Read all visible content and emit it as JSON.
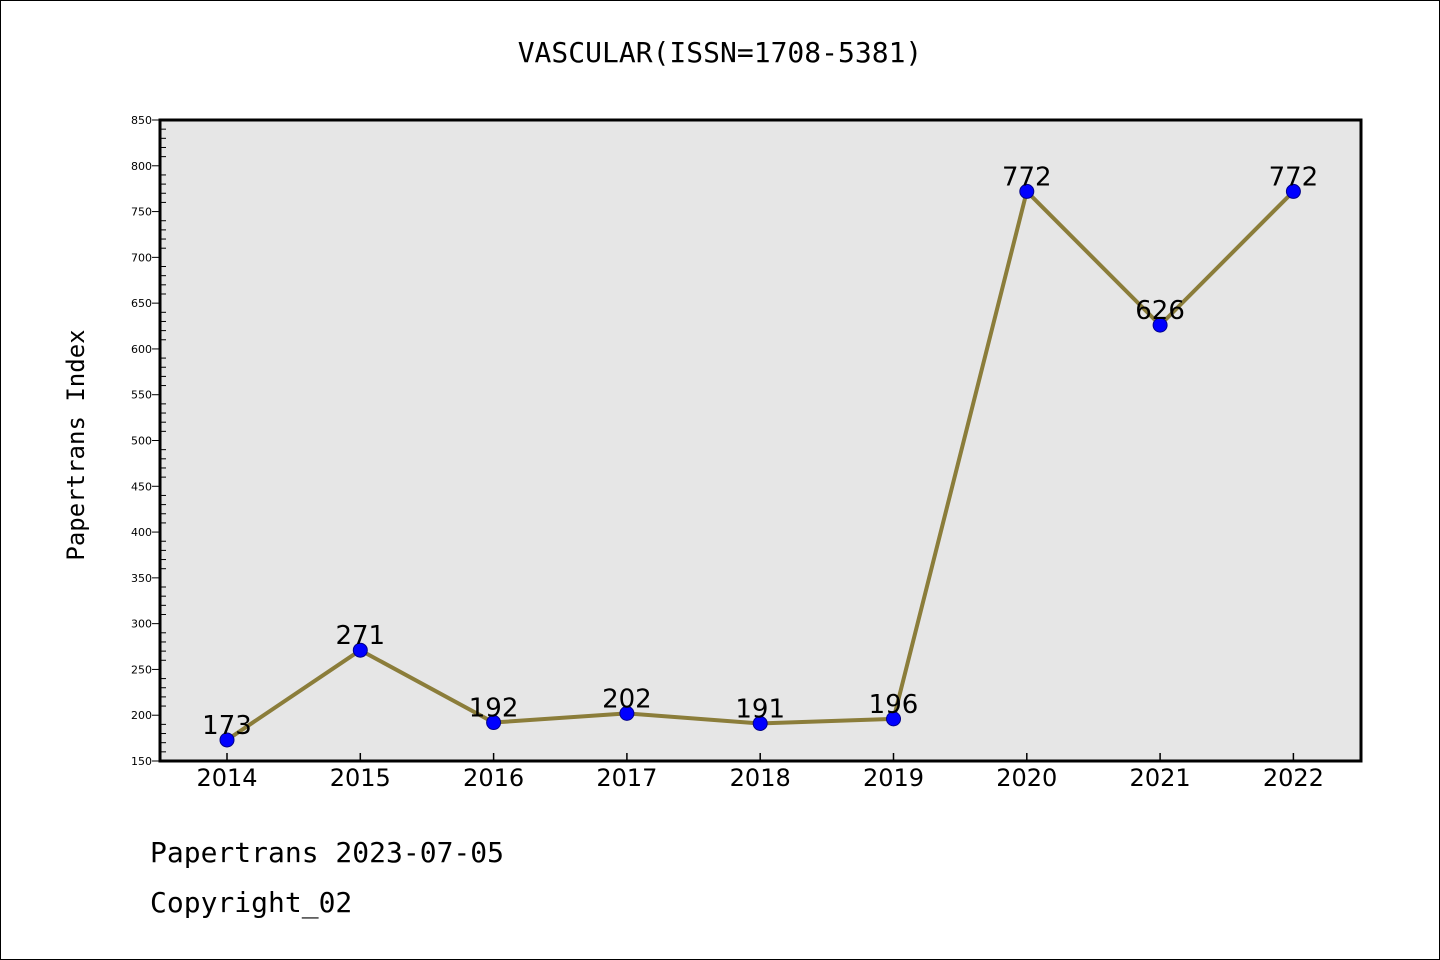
{
  "chart_data": {
    "type": "line",
    "title": "VASCULAR(ISSN=1708-5381)",
    "ylabel": "Papertrans Index",
    "xlabel": "",
    "categories": [
      "2014",
      "2015",
      "2016",
      "2017",
      "2018",
      "2019",
      "2020",
      "2021",
      "2022"
    ],
    "series": [
      {
        "values": [
          173,
          271,
          192,
          202,
          191,
          196,
          772,
          626,
          772
        ]
      }
    ],
    "data_labels": [
      "173",
      "271",
      "192",
      "202",
      "191",
      "196",
      "772",
      "626",
      "772"
    ],
    "ylim": [
      150,
      850
    ],
    "yticks": [
      150,
      200,
      250,
      300,
      350,
      400,
      450,
      500,
      550,
      600,
      650,
      700,
      750,
      800,
      850
    ],
    "grid": false,
    "line_color": "#8b7d3a",
    "marker_color": "#0000ff",
    "plot_background": "#e6e6e6"
  },
  "footer": {
    "line1": "Papertrans 2023-07-05",
    "line2": "Copyright_02"
  }
}
